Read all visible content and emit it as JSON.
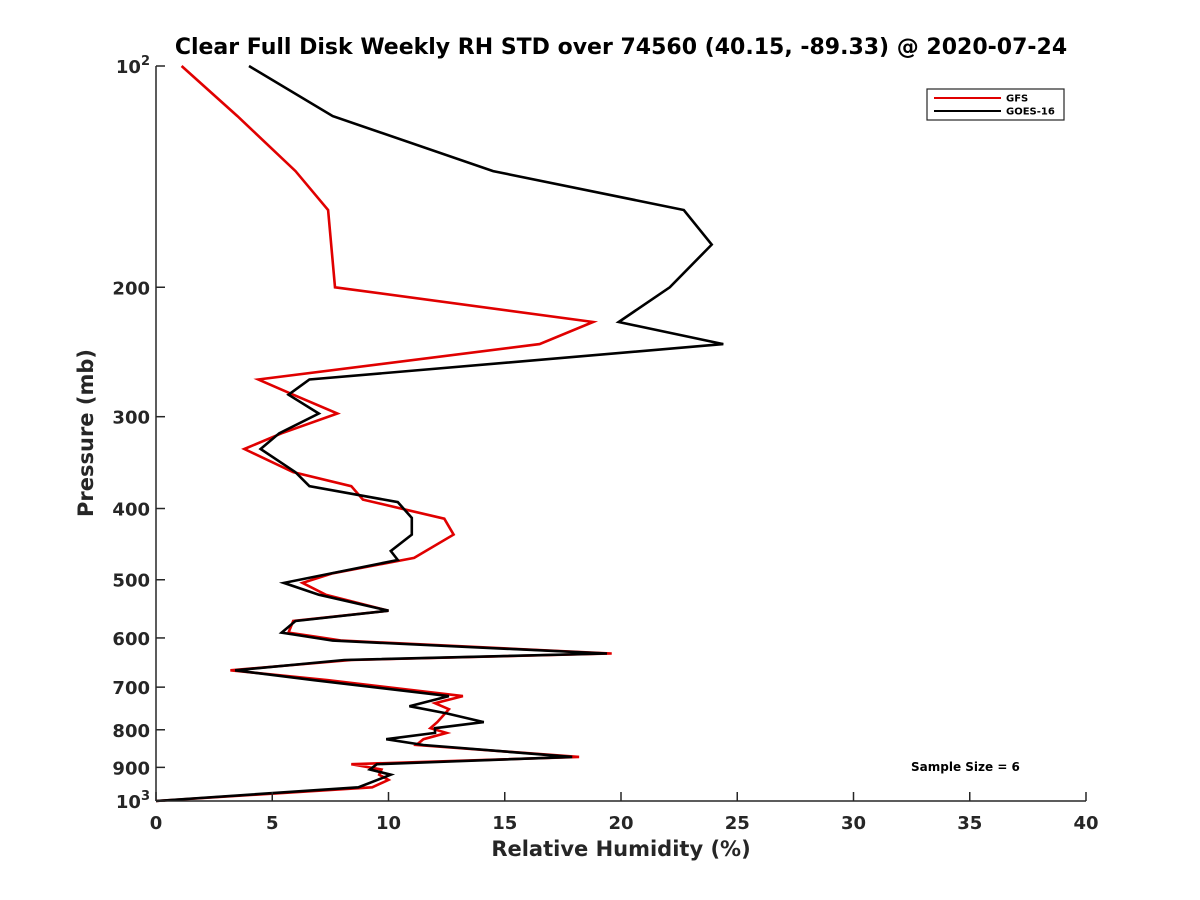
{
  "chart_data": {
    "type": "line",
    "title": "Clear Full Disk Weekly RH STD over 74560 (40.15, -89.33) @ 2020-07-24",
    "xlabel": "Relative Humidity (%)",
    "ylabel": "Pressure (mb)",
    "xlim": [
      0,
      40
    ],
    "ylim": [
      100,
      1000
    ],
    "y_scale": "log",
    "y_reversed": true,
    "x_ticks": [
      "0",
      "5",
      "10",
      "15",
      "20",
      "25",
      "30",
      "35",
      "40"
    ],
    "y_ticks": [
      {
        "value": 100,
        "base": "10",
        "exp": "2"
      },
      {
        "value": 200,
        "label": "200"
      },
      {
        "value": 300,
        "label": "300"
      },
      {
        "value": 400,
        "label": "400"
      },
      {
        "value": 500,
        "label": "500"
      },
      {
        "value": 600,
        "label": "600"
      },
      {
        "value": 700,
        "label": "700"
      },
      {
        "value": 800,
        "label": "800"
      },
      {
        "value": 900,
        "label": "900"
      },
      {
        "value": 1000,
        "base": "10",
        "exp": "3"
      }
    ],
    "legend_position": "top-right",
    "annotation": "Sample Size = 6",
    "series": [
      {
        "name": "GFS",
        "color": "#e00000",
        "x": [
          1.1,
          3.5,
          6.0,
          7.4,
          7.7,
          18.8,
          16.5,
          4.4,
          5.9,
          7.8,
          5.4,
          3.8,
          5.9,
          8.4,
          8.9,
          12.4,
          12.8,
          11.1,
          7.6,
          6.3,
          7.3,
          10.0,
          5.9,
          5.7,
          8.0,
          19.6,
          8.4,
          3.2,
          7.4,
          13.2,
          12.0,
          12.6,
          12.1,
          11.8,
          12.5,
          11.5,
          11.2,
          18.2,
          8.4,
          9.7,
          9.6,
          10.0,
          9.3,
          0.0
        ],
        "y": [
          100,
          117,
          139,
          157,
          200,
          223,
          239,
          267,
          280,
          297,
          316,
          332,
          357,
          373,
          389,
          413,
          434,
          467,
          490,
          505,
          524,
          551,
          569,
          590,
          605,
          630,
          643,
          664,
          685,
          720,
          736,
          750,
          781,
          796,
          808,
          824,
          839,
          871,
          891,
          906,
          921,
          936,
          958,
          1000
        ]
      },
      {
        "name": "GOES-16",
        "color": "#000000",
        "x": [
          4.0,
          7.6,
          14.5,
          22.7,
          23.9,
          22.1,
          19.9,
          24.4,
          6.6,
          5.7,
          7.0,
          5.3,
          4.5,
          6.0,
          6.6,
          10.4,
          11.0,
          11.0,
          10.1,
          10.4,
          5.5,
          7.0,
          10.0,
          6.0,
          5.4,
          7.6,
          19.4,
          8.1,
          3.4,
          6.8,
          12.6,
          10.9,
          12.5,
          14.1,
          12.0,
          12.0,
          9.9,
          11.5,
          17.9,
          9.5,
          9.2,
          10.1,
          8.7,
          0.0
        ],
        "y": [
          100,
          117,
          139,
          157,
          175,
          200,
          223,
          239,
          267,
          280,
          297,
          316,
          332,
          357,
          373,
          392,
          412,
          434,
          457,
          470,
          505,
          524,
          551,
          569,
          590,
          605,
          630,
          643,
          664,
          685,
          720,
          743,
          760,
          781,
          796,
          808,
          824,
          839,
          871,
          891,
          906,
          921,
          958,
          1000
        ]
      }
    ]
  }
}
